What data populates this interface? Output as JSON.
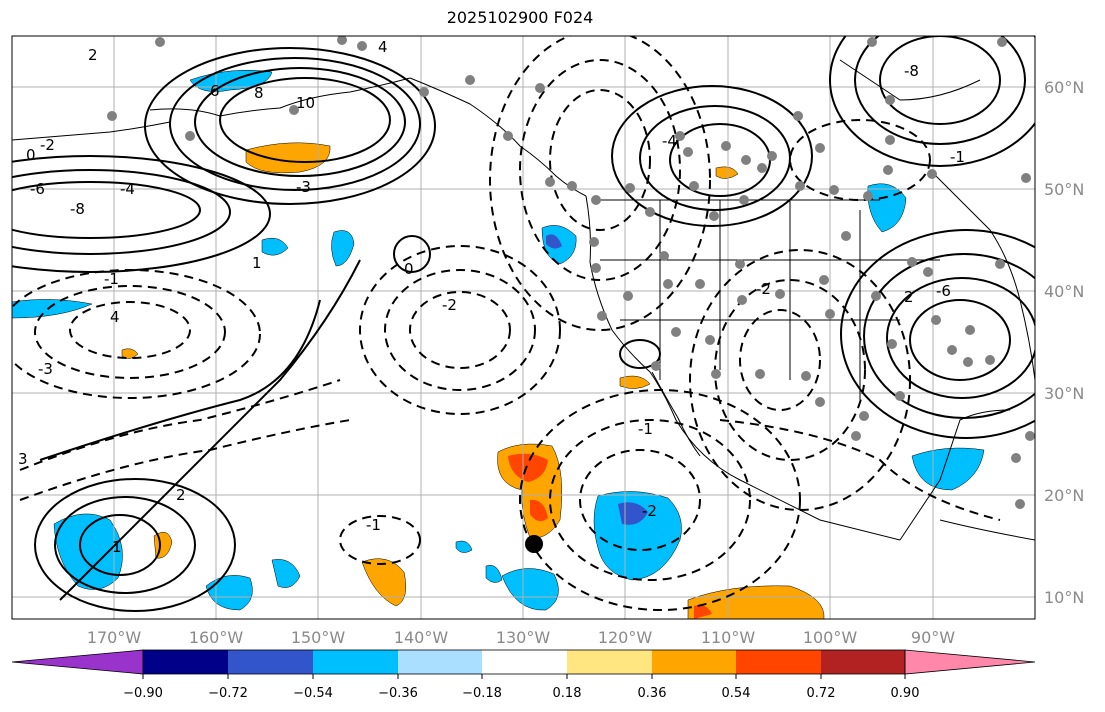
{
  "title": "2025102900 F024",
  "map": {
    "lat_labels": [
      "60°N",
      "50°N",
      "40°N",
      "30°N",
      "20°N",
      "10°N"
    ],
    "lon_labels": [
      "170°W",
      "160°W",
      "150°W",
      "140°W",
      "130°W",
      "120°W",
      "110°W",
      "100°W",
      "90°W"
    ],
    "contour_labels": [
      "2",
      "4",
      "6",
      "8",
      "0",
      "-2",
      "-4",
      "-6",
      "-8",
      "10",
      "-1",
      "1",
      "-3",
      "3",
      "0",
      "-2",
      "2",
      "-1",
      "1",
      "-3",
      "-4",
      "-8",
      "-6",
      "-2",
      "-1",
      "4",
      "2",
      "-2",
      "-1"
    ],
    "colors": {
      "grid": "#b0b0b0",
      "land": "#000000",
      "contour": "#000000",
      "stations": "#808080",
      "storm_center": "#000000"
    }
  },
  "colorbar": {
    "colors": [
      "#9933cc",
      "#000088",
      "#3355cc",
      "#00bfff",
      "#aadfff",
      "#ffffff",
      "#ffe680",
      "#ffa500",
      "#ff4500",
      "#b22222",
      "#ff88aa"
    ],
    "tick_labels": [
      "−0.90",
      "−0.72",
      "−0.54",
      "−0.36",
      "−0.18",
      "0.18",
      "0.36",
      "0.54",
      "0.72",
      "0.90"
    ]
  }
}
